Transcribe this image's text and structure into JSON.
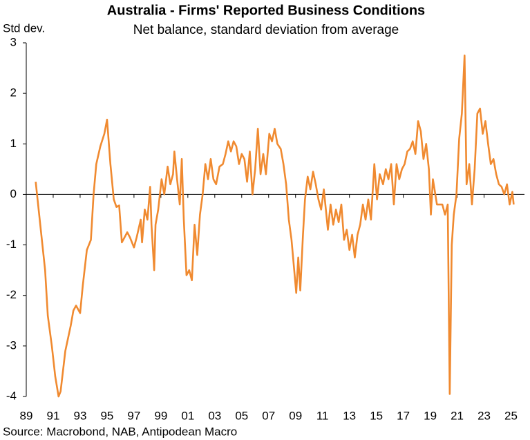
{
  "chart_data": {
    "type": "line",
    "title": "Australia - Firms' Reported Business Conditions",
    "subtitle": "Net balance, standard deviation from average",
    "y_label": "Std dev.",
    "source": "Source: Macrobond, NAB, Antipodean Macro",
    "color": "#f08a30",
    "xlim": [
      1989,
      2026
    ],
    "ylim": [
      -4,
      3
    ],
    "yticks": [
      -4,
      -3,
      -2,
      -1,
      0,
      1,
      2,
      3
    ],
    "xticks": [
      {
        "value": 1989,
        "label": "89"
      },
      {
        "value": 1991,
        "label": "91"
      },
      {
        "value": 1993,
        "label": "93"
      },
      {
        "value": 1995,
        "label": "95"
      },
      {
        "value": 1997,
        "label": "97"
      },
      {
        "value": 1999,
        "label": "99"
      },
      {
        "value": 2001,
        "label": "01"
      },
      {
        "value": 2003,
        "label": "03"
      },
      {
        "value": 2005,
        "label": "05"
      },
      {
        "value": 2007,
        "label": "07"
      },
      {
        "value": 2009,
        "label": "09"
      },
      {
        "value": 2011,
        "label": "11"
      },
      {
        "value": 2013,
        "label": "13"
      },
      {
        "value": 2015,
        "label": "15"
      },
      {
        "value": 2017,
        "label": "17"
      },
      {
        "value": 2019,
        "label": "19"
      },
      {
        "value": 2021,
        "label": "21"
      },
      {
        "value": 2023,
        "label": "23"
      },
      {
        "value": 2025,
        "label": "25"
      }
    ],
    "x": [
      1989.7,
      1990.4,
      1990.6,
      1990.9,
      1991.15,
      1991.4,
      1991.55,
      1991.9,
      1992.3,
      1992.5,
      1992.7,
      1993.0,
      1993.2,
      1993.5,
      1993.8,
      1994.0,
      1994.2,
      1994.5,
      1994.8,
      1995.0,
      1995.25,
      1995.5,
      1995.7,
      1995.9,
      1996.1,
      1996.3,
      1996.5,
      1996.7,
      1997.0,
      1997.2,
      1997.5,
      1997.6,
      1997.8,
      1998.0,
      1998.2,
      1998.3,
      1998.5,
      1998.6,
      1998.8,
      1999.05,
      1999.25,
      1999.5,
      1999.7,
      1999.9,
      2000.0,
      2000.2,
      2000.4,
      2000.55,
      2000.7,
      2000.9,
      2001.1,
      2001.3,
      2001.5,
      2001.7,
      2001.9,
      2002.1,
      2002.3,
      2002.5,
      2002.7,
      2002.9,
      2003.1,
      2003.35,
      2003.6,
      2003.8,
      2004.0,
      2004.2,
      2004.4,
      2004.6,
      2004.8,
      2005.0,
      2005.2,
      2005.4,
      2005.6,
      2005.8,
      2006.0,
      2006.2,
      2006.4,
      2006.6,
      2006.8,
      2007.05,
      2007.25,
      2007.45,
      2007.65,
      2007.9,
      2008.1,
      2008.3,
      2008.5,
      2008.7,
      2008.9,
      2009.05,
      2009.2,
      2009.35,
      2009.55,
      2009.7,
      2009.9,
      2010.1,
      2010.3,
      2010.5,
      2010.7,
      2010.9,
      2011.1,
      2011.4,
      2011.6,
      2011.8,
      2012.0,
      2012.2,
      2012.4,
      2012.6,
      2012.8,
      2013.0,
      2013.2,
      2013.4,
      2013.6,
      2013.8,
      2014.0,
      2014.2,
      2014.4,
      2014.6,
      2014.85,
      2015.05,
      2015.25,
      2015.5,
      2015.7,
      2015.9,
      2016.1,
      2016.3,
      2016.5,
      2016.7,
      2016.9,
      2017.1,
      2017.3,
      2017.5,
      2017.7,
      2017.9,
      2018.1,
      2018.3,
      2018.5,
      2018.7,
      2018.9,
      2019.05,
      2019.2,
      2019.5,
      2019.7,
      2019.9,
      2020.1,
      2020.3,
      2020.45,
      2020.6,
      2020.75,
      2020.95,
      2021.15,
      2021.35,
      2021.55,
      2021.7,
      2021.9,
      2022.1,
      2022.3,
      2022.5,
      2022.7,
      2022.9,
      2023.1,
      2023.3,
      2023.5,
      2023.7,
      2023.9,
      2024.1,
      2024.3,
      2024.5,
      2024.7,
      2024.9,
      2025.1,
      2025.2
    ],
    "values": [
      0.25,
      -1.5,
      -2.4,
      -3.0,
      -3.6,
      -4.0,
      -3.9,
      -3.1,
      -2.6,
      -2.3,
      -2.2,
      -2.35,
      -1.8,
      -1.1,
      -0.9,
      0.0,
      0.6,
      0.95,
      1.2,
      1.48,
      0.6,
      -0.1,
      -0.25,
      -0.22,
      -0.95,
      -0.85,
      -0.75,
      -0.85,
      -1.05,
      -0.85,
      -0.5,
      -0.95,
      -0.3,
      -0.5,
      0.15,
      -0.6,
      -1.5,
      -0.6,
      -0.3,
      0.3,
      0.0,
      0.55,
      0.2,
      0.4,
      0.85,
      0.3,
      -0.2,
      0.7,
      -0.5,
      -1.6,
      -1.5,
      -1.7,
      -0.6,
      -1.2,
      -0.4,
      0.0,
      0.6,
      0.3,
      0.7,
      0.3,
      0.2,
      0.55,
      0.6,
      0.8,
      1.05,
      0.85,
      1.05,
      0.95,
      0.6,
      0.8,
      0.7,
      0.25,
      0.85,
      0.0,
      0.5,
      1.3,
      0.4,
      0.8,
      0.4,
      1.2,
      1.05,
      1.3,
      1.0,
      0.9,
      0.6,
      0.2,
      -0.5,
      -0.9,
      -1.5,
      -1.95,
      -1.25,
      -1.9,
      -0.8,
      -0.1,
      0.35,
      0.1,
      0.45,
      0.2,
      -0.1,
      -0.3,
      0.1,
      -0.7,
      -0.2,
      -0.6,
      -0.3,
      -0.55,
      -0.2,
      -0.9,
      -0.7,
      -1.1,
      -0.8,
      -1.25,
      -0.8,
      -0.6,
      -0.2,
      -0.5,
      -0.1,
      -0.5,
      0.6,
      -0.1,
      0.4,
      0.2,
      0.5,
      0.3,
      0.6,
      -0.2,
      0.6,
      0.3,
      0.5,
      0.6,
      0.85,
      0.9,
      1.05,
      0.8,
      1.45,
      1.25,
      0.7,
      1.0,
      0.5,
      -0.4,
      0.3,
      -0.2,
      -0.2,
      -0.2,
      -0.4,
      -0.2,
      -3.95,
      -1.0,
      -0.4,
      0.0,
      1.1,
      1.6,
      2.75,
      0.2,
      0.6,
      -0.2,
      0.5,
      1.6,
      1.7,
      1.2,
      1.45,
      1.0,
      0.6,
      0.7,
      0.4,
      0.2,
      0.15,
      0.0,
      0.2,
      -0.2,
      0.05,
      -0.2
    ]
  }
}
